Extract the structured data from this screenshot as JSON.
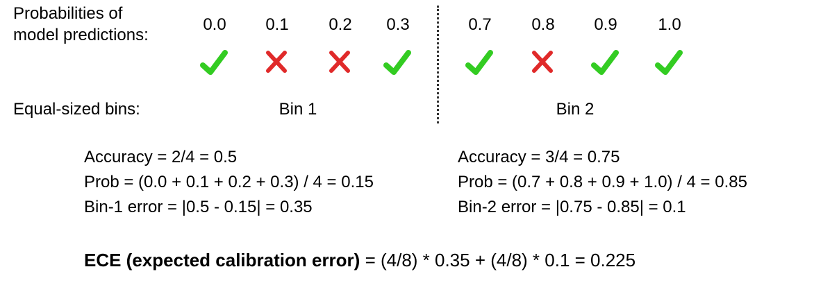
{
  "header": {
    "probabilities_label_line1": "Probabilities of",
    "probabilities_label_line2": "model predictions:",
    "bins_label": "Equal-sized bins:"
  },
  "predictions": [
    {
      "prob": "0.0",
      "correct": true
    },
    {
      "prob": "0.1",
      "correct": false
    },
    {
      "prob": "0.2",
      "correct": false
    },
    {
      "prob": "0.3",
      "correct": true
    },
    {
      "prob": "0.7",
      "correct": true
    },
    {
      "prob": "0.8",
      "correct": false
    },
    {
      "prob": "0.9",
      "correct": true
    },
    {
      "prob": "1.0",
      "correct": true
    }
  ],
  "bins": [
    {
      "name": "Bin 1",
      "accuracy": "Accuracy = 2/4 = 0.5",
      "prob": "Prob = (0.0 + 0.1 + 0.2 + 0.3) / 4 = 0.15",
      "error": "Bin-1 error = |0.5 - 0.15| = 0.35"
    },
    {
      "name": "Bin 2",
      "accuracy": "Accuracy = 3/4 = 0.75",
      "prob": "Prob = (0.7 + 0.8 + 0.9 + 1.0) / 4 = 0.85",
      "error": "Bin-2 error = |0.75 - 0.85| = 0.1"
    }
  ],
  "ece": {
    "label": "ECE (expected calibration error)",
    "formula": " = (4/8) * 0.35 + (4/8) * 0.1 = 0.225"
  },
  "colors": {
    "check": "#33cc22",
    "cross": "#e02a2a"
  }
}
